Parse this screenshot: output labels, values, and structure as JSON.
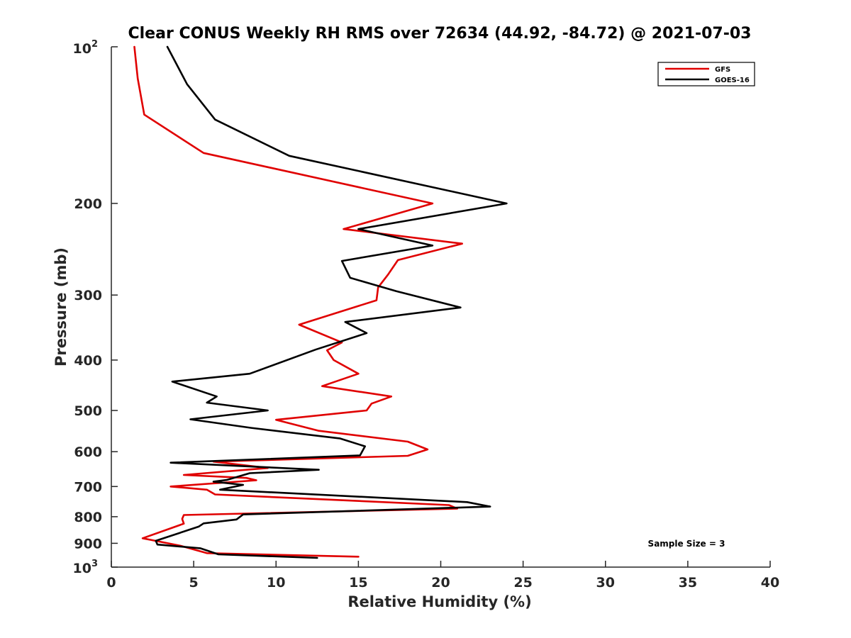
{
  "chart_data": {
    "type": "line",
    "title": "Clear CONUS Weekly RH RMS over 72634 (44.92, -84.72) @ 2021-07-03",
    "xlabel": "Relative Humidity (%)",
    "ylabel": "Pressure (mb)",
    "xlim": [
      0,
      40
    ],
    "ylim": [
      100,
      1000
    ],
    "yscale": "log",
    "yreversed": true,
    "xticks": [
      0,
      5,
      10,
      15,
      20,
      25,
      30,
      35,
      40
    ],
    "xtick_labels": [
      "0",
      "5",
      "10",
      "15",
      "20",
      "25",
      "30",
      "35",
      "40"
    ],
    "yticks": [
      {
        "value": 200,
        "label": "200"
      },
      {
        "value": 300,
        "label": "300"
      },
      {
        "value": 400,
        "label": "400"
      },
      {
        "value": 500,
        "label": "500"
      },
      {
        "value": 600,
        "label": "600"
      },
      {
        "value": 700,
        "label": "700"
      },
      {
        "value": 800,
        "label": "800"
      },
      {
        "value": 900,
        "label": "900"
      }
    ],
    "ytick_top": {
      "base": "10",
      "exp": "2"
    },
    "ytick_bottom": {
      "base": "10",
      "exp": "3"
    },
    "legend_position": "top-right",
    "annotation": "Sample Size = 3",
    "series": [
      {
        "name": "GFS",
        "color": "#e00000",
        "points": [
          [
            1.4,
            100
          ],
          [
            1.6,
            115
          ],
          [
            2.0,
            135
          ],
          [
            5.6,
            160
          ],
          [
            19.5,
            200
          ],
          [
            14.1,
            224
          ],
          [
            21.3,
            239
          ],
          [
            17.4,
            257
          ],
          [
            16.8,
            274
          ],
          [
            16.2,
            290
          ],
          [
            16.1,
            307
          ],
          [
            11.4,
            342
          ],
          [
            14.0,
            370
          ],
          [
            13.1,
            383
          ],
          [
            13.5,
            400
          ],
          [
            15.0,
            425
          ],
          [
            12.8,
            449
          ],
          [
            17.0,
            470
          ],
          [
            15.8,
            485
          ],
          [
            15.5,
            500
          ],
          [
            10.0,
            521
          ],
          [
            12.6,
            547
          ],
          [
            18.0,
            574
          ],
          [
            19.2,
            594
          ],
          [
            18.0,
            611
          ],
          [
            6.2,
            627
          ],
          [
            9.5,
            645
          ],
          [
            4.4,
            665
          ],
          [
            8.2,
            674
          ],
          [
            8.8,
            681
          ],
          [
            3.6,
            700
          ],
          [
            5.8,
            710
          ],
          [
            6.3,
            725
          ],
          [
            20.5,
            760
          ],
          [
            21.0,
            772
          ],
          [
            4.4,
            794
          ],
          [
            4.3,
            808
          ],
          [
            4.4,
            825
          ],
          [
            1.9,
            880
          ],
          [
            4.2,
            910
          ],
          [
            5.8,
            940
          ],
          [
            15.0,
            955
          ]
        ]
      },
      {
        "name": "GOES-16",
        "color": "#000000",
        "points": [
          [
            3.4,
            100
          ],
          [
            4.6,
            118
          ],
          [
            6.3,
            138
          ],
          [
            10.8,
            162
          ],
          [
            24.0,
            200
          ],
          [
            15.0,
            224
          ],
          [
            19.5,
            241
          ],
          [
            14.0,
            258
          ],
          [
            14.5,
            278
          ],
          [
            17.3,
            295
          ],
          [
            21.2,
            317
          ],
          [
            14.2,
            338
          ],
          [
            15.5,
            355
          ],
          [
            12.4,
            382
          ],
          [
            8.4,
            425
          ],
          [
            3.7,
            440
          ],
          [
            6.4,
            470
          ],
          [
            5.8,
            483
          ],
          [
            9.5,
            500
          ],
          [
            4.8,
            520
          ],
          [
            8.5,
            540
          ],
          [
            13.9,
            566
          ],
          [
            15.4,
            586
          ],
          [
            15.1,
            610
          ],
          [
            3.6,
            630
          ],
          [
            12.6,
            650
          ],
          [
            8.4,
            660
          ],
          [
            7.0,
            680
          ],
          [
            6.2,
            685
          ],
          [
            8.0,
            695
          ],
          [
            6.6,
            710
          ],
          [
            21.6,
            750
          ],
          [
            23.0,
            765
          ],
          [
            8.0,
            792
          ],
          [
            7.6,
            810
          ],
          [
            5.6,
            824
          ],
          [
            5.3,
            836
          ],
          [
            2.7,
            890
          ],
          [
            2.8,
            905
          ],
          [
            5.4,
            920
          ],
          [
            6.5,
            945
          ],
          [
            12.5,
            960
          ]
        ]
      }
    ]
  }
}
